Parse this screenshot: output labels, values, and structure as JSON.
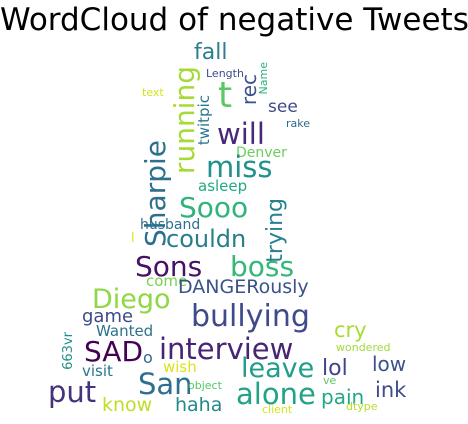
{
  "title": "WordCloud of negative Tweets",
  "words": [
    {
      "text": "fall",
      "color": "#2c7e8e"
    },
    {
      "text": "Length",
      "color": "#3d4d8a"
    },
    {
      "text": "Name",
      "color": "#2db27d"
    },
    {
      "text": "rec",
      "color": "#3b528b"
    },
    {
      "text": "t",
      "color": "#5ac864"
    },
    {
      "text": "text",
      "color": "#d8e219"
    },
    {
      "text": "twitpic",
      "color": "#2a788e"
    },
    {
      "text": "running",
      "color": "#a5db36"
    },
    {
      "text": "see",
      "color": "#3e4a89"
    },
    {
      "text": "rake",
      "color": "#31688e"
    },
    {
      "text": "will",
      "color": "#482878"
    },
    {
      "text": "Sharpie",
      "color": "#2d708e"
    },
    {
      "text": "Denver",
      "color": "#6ccd5a"
    },
    {
      "text": "miss",
      "color": "#21918c"
    },
    {
      "text": "asleep",
      "color": "#22a884"
    },
    {
      "text": "Sooo",
      "color": "#2fb47c"
    },
    {
      "text": "trying",
      "color": "#26828e"
    },
    {
      "text": "husband",
      "color": "#2c728e"
    },
    {
      "text": "couldn",
      "color": "#287d8e"
    },
    {
      "text": "l",
      "color": "#e2e418"
    },
    {
      "text": "Sons",
      "color": "#471164"
    },
    {
      "text": "boss",
      "color": "#35b779"
    },
    {
      "text": "come",
      "color": "#7ad151"
    },
    {
      "text": "DANGERously",
      "color": "#3b528b"
    },
    {
      "text": "Diego",
      "color": "#8fd744"
    },
    {
      "text": "game",
      "color": "#3e4989"
    },
    {
      "text": "bullying",
      "color": "#3e4a89"
    },
    {
      "text": "Wanted",
      "color": "#2c728e"
    },
    {
      "text": "cry",
      "color": "#a8db34"
    },
    {
      "text": "663vr",
      "color": "#21918c"
    },
    {
      "text": "SAD",
      "color": "#440154"
    },
    {
      "text": "interview",
      "color": "#482475"
    },
    {
      "text": "wondered",
      "color": "#a0da39"
    },
    {
      "text": "o",
      "color": "#31688e"
    },
    {
      "text": "low",
      "color": "#3b528b"
    },
    {
      "text": "visit",
      "color": "#2a768e"
    },
    {
      "text": "wish",
      "color": "#dde318"
    },
    {
      "text": "leave",
      "color": "#1f9e89"
    },
    {
      "text": "lol",
      "color": "#414487"
    },
    {
      "text": "San",
      "color": "#2e6e8e"
    },
    {
      "text": "put",
      "color": "#46327e"
    },
    {
      "text": "object",
      "color": "#52c569"
    },
    {
      "text": "alone",
      "color": "#20a386"
    },
    {
      "text": "ve",
      "color": "#5ec962"
    },
    {
      "text": "ink",
      "color": "#3e4c8a"
    },
    {
      "text": "pain",
      "color": "#22a884"
    },
    {
      "text": "know",
      "color": "#bddf26"
    },
    {
      "text": "haha",
      "color": "#23888e"
    },
    {
      "text": "client",
      "color": "#dae319"
    },
    {
      "text": "dtype",
      "color": "#b5de2b"
    }
  ]
}
